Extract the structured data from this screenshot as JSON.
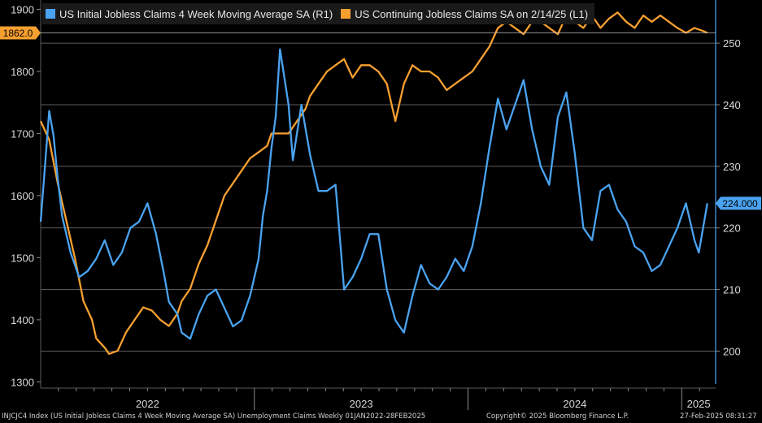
{
  "colors": {
    "left_series": "#f7a030",
    "right_series": "#4aa3f0",
    "grid": "#7a7a7a",
    "axis_text": "#d8d8d8"
  },
  "legend": [
    {
      "label": "US Initial Jobless Claims 4 Week Moving Average SA  (R1)",
      "color": "#4aa3f0"
    },
    {
      "label": "US Continuing Jobless Claims SA  on 2/14/25 (L1)",
      "color": "#f7a030"
    }
  ],
  "footer": {
    "left": "INJCJC4 Index (US Initial Jobless Claims 4 Week Moving Average SA) Unemployment Claims  Weekly 01JAN2022-28FEB2025",
    "center": "Copyright© 2025 Bloomberg Finance L.P.",
    "right": "27-Feb-2025 08:31:27"
  },
  "chart_data": {
    "type": "line",
    "x_range": [
      "2022-01-01",
      "2025-02-28"
    ],
    "x_tick_labels": [
      "2022",
      "2023",
      "2024",
      "2025"
    ],
    "left_axis": {
      "label": "L1",
      "ylim": [
        1290,
        1915
      ],
      "ticks": [
        1300,
        1400,
        1500,
        1600,
        1700,
        1800,
        1900
      ]
    },
    "right_axis": {
      "label": "R1",
      "ylim": [
        194,
        257
      ],
      "ticks": [
        200,
        210,
        220,
        230,
        240,
        250
      ]
    },
    "last_value_tags": {
      "left": "1862.0",
      "right": "224.000"
    },
    "series": [
      {
        "name": "US Continuing Jobless Claims SA  on 2/14/25 (L1)",
        "axis": "left",
        "x": [
          2022.0,
          2022.04,
          2022.08,
          2022.12,
          2022.16,
          2022.2,
          2022.24,
          2022.26,
          2022.3,
          2022.32,
          2022.36,
          2022.4,
          2022.44,
          2022.48,
          2022.52,
          2022.56,
          2022.6,
          2022.64,
          2022.66,
          2022.7,
          2022.74,
          2022.78,
          2022.82,
          2022.86,
          2022.9,
          2022.94,
          2022.98,
          2023.02,
          2023.06,
          2023.08,
          2023.12,
          2023.16,
          2023.2,
          2023.24,
          2023.26,
          2023.3,
          2023.34,
          2023.38,
          2023.42,
          2023.46,
          2023.5,
          2023.54,
          2023.58,
          2023.62,
          2023.66,
          2023.7,
          2023.74,
          2023.78,
          2023.82,
          2023.86,
          2023.9,
          2023.94,
          2023.98,
          2024.02,
          2024.06,
          2024.1,
          2024.14,
          2024.18,
          2024.22,
          2024.26,
          2024.3,
          2024.34,
          2024.38,
          2024.42,
          2024.46,
          2024.5,
          2024.54,
          2024.58,
          2024.62,
          2024.66,
          2024.7,
          2024.74,
          2024.78,
          2024.82,
          2024.86,
          2024.9,
          2024.94,
          2024.98,
          2025.02,
          2025.06,
          2025.1,
          2025.12
        ],
        "values": [
          1720,
          1690,
          1620,
          1560,
          1500,
          1430,
          1400,
          1370,
          1355,
          1345,
          1350,
          1380,
          1400,
          1420,
          1415,
          1400,
          1390,
          1410,
          1430,
          1450,
          1490,
          1520,
          1560,
          1600,
          1620,
          1640,
          1660,
          1670,
          1680,
          1700,
          1700,
          1700,
          1720,
          1740,
          1760,
          1780,
          1800,
          1810,
          1820,
          1790,
          1810,
          1810,
          1800,
          1780,
          1720,
          1780,
          1810,
          1800,
          1800,
          1790,
          1770,
          1780,
          1790,
          1800,
          1820,
          1840,
          1870,
          1880,
          1870,
          1860,
          1880,
          1880,
          1870,
          1860,
          1890,
          1880,
          1870,
          1890,
          1870,
          1885,
          1895,
          1880,
          1870,
          1890,
          1880,
          1890,
          1880,
          1870,
          1862,
          1870,
          1865,
          1862
        ]
      },
      {
        "name": "US Initial Jobless Claims 4 Week Moving Average SA  (R1)",
        "axis": "right",
        "x": [
          2022.0,
          2022.02,
          2022.04,
          2022.06,
          2022.08,
          2022.1,
          2022.14,
          2022.18,
          2022.22,
          2022.26,
          2022.3,
          2022.34,
          2022.38,
          2022.42,
          2022.46,
          2022.5,
          2022.54,
          2022.58,
          2022.6,
          2022.64,
          2022.66,
          2022.7,
          2022.74,
          2022.78,
          2022.82,
          2022.86,
          2022.9,
          2022.94,
          2022.98,
          2023.02,
          2023.04,
          2023.06,
          2023.08,
          2023.1,
          2023.12,
          2023.16,
          2023.18,
          2023.22,
          2023.26,
          2023.3,
          2023.34,
          2023.38,
          2023.42,
          2023.46,
          2023.5,
          2023.54,
          2023.58,
          2023.62,
          2023.66,
          2023.7,
          2023.74,
          2023.78,
          2023.82,
          2023.86,
          2023.9,
          2023.94,
          2023.98,
          2024.02,
          2024.06,
          2024.1,
          2024.14,
          2024.18,
          2024.22,
          2024.26,
          2024.3,
          2024.34,
          2024.38,
          2024.42,
          2024.46,
          2024.5,
          2024.54,
          2024.58,
          2024.62,
          2024.66,
          2024.7,
          2024.74,
          2024.78,
          2024.82,
          2024.86,
          2024.9,
          2024.94,
          2024.98,
          2025.02,
          2025.06,
          2025.08,
          2025.12
        ],
        "values": [
          221,
          230,
          239,
          235,
          228,
          222,
          216,
          212,
          213,
          215,
          218,
          214,
          216,
          220,
          221,
          224,
          219,
          212,
          208,
          206,
          203,
          202,
          206,
          209,
          210,
          207,
          204,
          205,
          209,
          215,
          222,
          226,
          233,
          238,
          249,
          240,
          231,
          240,
          232,
          226,
          226,
          227,
          210,
          212,
          215,
          219,
          219,
          210,
          205,
          203,
          209,
          214,
          211,
          210,
          212,
          215,
          213,
          217,
          224,
          233,
          241,
          236,
          240,
          244,
          236,
          230,
          227,
          238,
          242,
          232,
          220,
          218,
          226,
          227,
          223,
          221,
          217,
          216,
          213,
          214,
          217,
          220,
          224,
          218,
          216,
          224
        ]
      }
    ]
  }
}
